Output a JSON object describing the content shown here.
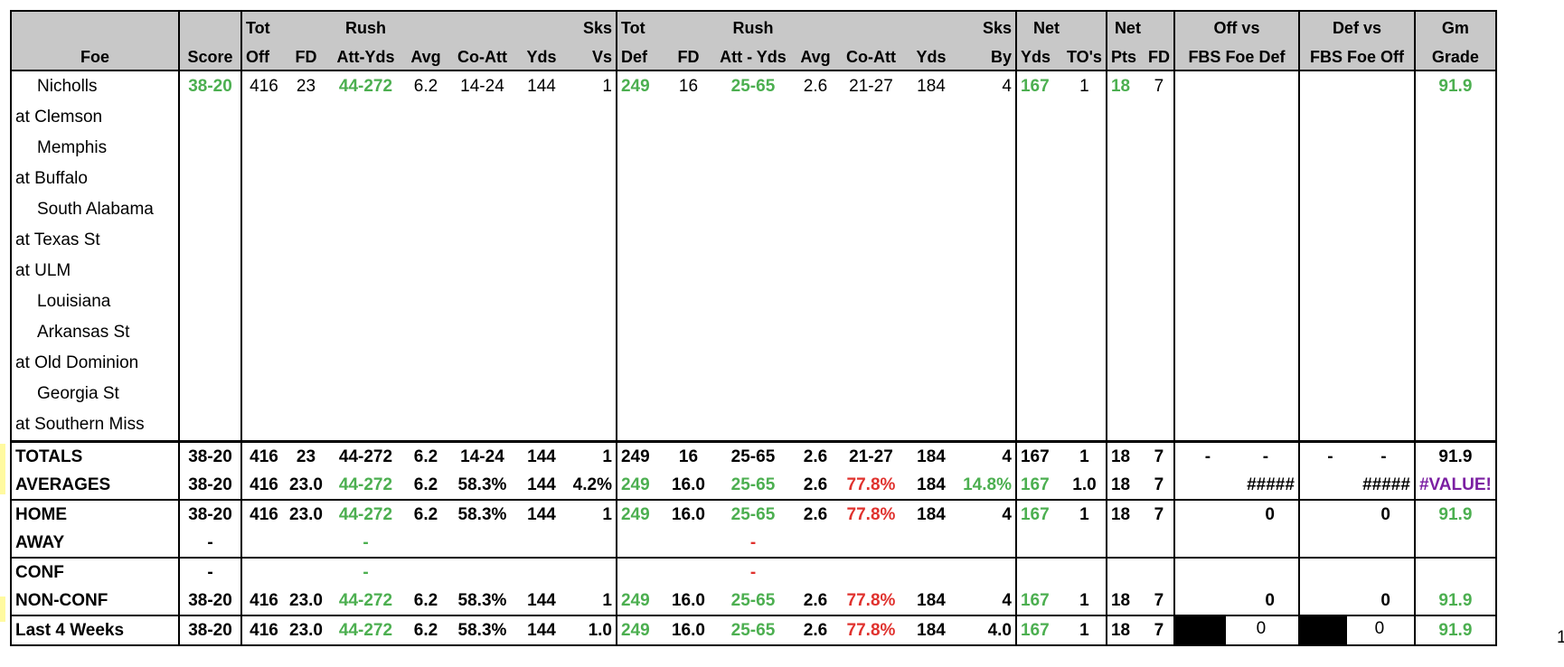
{
  "header_top": [
    "",
    "",
    "Tot",
    "",
    "Rush",
    "",
    "",
    "",
    "Sks",
    "Tot",
    "",
    "Rush",
    "",
    "",
    "",
    "Sks",
    "Net",
    "",
    "Net",
    "",
    "Off vs",
    "Def vs",
    "Gm"
  ],
  "header_bottom": [
    "Foe",
    "Score",
    "Off",
    "FD",
    "Att-Yds",
    "Avg",
    "Co-Att",
    "Yds",
    "Vs",
    "Def",
    "FD",
    "Att - Yds",
    "Avg",
    "Co-Att",
    "Yds",
    "By",
    "Yds",
    "TO's",
    "Pts",
    "FD",
    "FBS Foe Def",
    "FBS Foe Off",
    "Grade"
  ],
  "games": [
    {
      "foe": "Nicholls",
      "away": false,
      "score": "38-20",
      "tot_off": "416",
      "fd": "23",
      "rush": "44-272",
      "avg": "6.2",
      "co_att": "14-24",
      "yds": "144",
      "sks_vs": "1",
      "tot_def": "249",
      "dfd": "16",
      "drush": "25-65",
      "davg": "2.6",
      "dco_att": "21-27",
      "dyds": "184",
      "sks_by": "4",
      "net_yds": "167",
      "tos": "1",
      "pts": "18",
      "nfd": "7",
      "off_vs": "",
      "def_vs": "",
      "grade": "91.9"
    },
    {
      "foe": "at Clemson",
      "away": true
    },
    {
      "foe": "Memphis",
      "away": false
    },
    {
      "foe": "at Buffalo",
      "away": true
    },
    {
      "foe": "South Alabama",
      "away": false
    },
    {
      "foe": "at Texas St",
      "away": true
    },
    {
      "foe": "at ULM",
      "away": true
    },
    {
      "foe": "Louisiana",
      "away": false
    },
    {
      "foe": "Arkansas St",
      "away": false
    },
    {
      "foe": "at Old Dominion",
      "away": true
    },
    {
      "foe": "Georgia St",
      "away": false
    },
    {
      "foe": "at Southern Miss",
      "away": true
    }
  ],
  "totals": {
    "label": "TOTALS",
    "score": "38-20",
    "tot_off": "416",
    "fd": "23",
    "rush": "44-272",
    "avg": "6.2",
    "co_att": "14-24",
    "yds": "144",
    "sks_vs": "1",
    "tot_def": "249",
    "dfd": "16",
    "drush": "25-65",
    "davg": "2.6",
    "dco_att": "21-27",
    "dyds": "184",
    "sks_by": "4",
    "net_yds": "167",
    "tos": "1",
    "pts": "18",
    "nfd": "7",
    "off_vs_a": "-",
    "off_vs_b": "-",
    "def_vs_a": "-",
    "def_vs_b": "-",
    "grade": "91.9"
  },
  "averages": {
    "label": "AVERAGES",
    "score": "38-20",
    "tot_off": "416",
    "fd": "23.0",
    "rush": "44-272",
    "avg": "6.2",
    "co_att": "58.3%",
    "yds": "144",
    "sks_vs": "4.2%",
    "tot_def": "249",
    "dfd": "16.0",
    "drush": "25-65",
    "davg": "2.6",
    "dco_att": "77.8%",
    "dyds": "184",
    "sks_by": "14.8%",
    "net_yds": "167",
    "tos": "1.0",
    "pts": "18",
    "nfd": "7",
    "off_vs": "#####",
    "def_vs": "#####",
    "grade": "#VALUE!"
  },
  "home": {
    "label": "HOME",
    "score": "38-20",
    "tot_off": "416",
    "fd": "23.0",
    "rush": "44-272",
    "avg": "6.2",
    "co_att": "58.3%",
    "yds": "144",
    "sks_vs": "1",
    "tot_def": "249",
    "dfd": "16.0",
    "drush": "25-65",
    "davg": "2.6",
    "dco_att": "77.8%",
    "dyds": "184",
    "sks_by": "4",
    "net_yds": "167",
    "tos": "1",
    "pts": "18",
    "nfd": "7",
    "off_vs": "0",
    "def_vs": "0",
    "grade": "91.9"
  },
  "away": {
    "label": "AWAY",
    "score": "-",
    "rush": "-",
    "drush": "-"
  },
  "conf": {
    "label": "CONF",
    "score": "-",
    "rush": "-",
    "drush": "-"
  },
  "nonconf": {
    "label": "NON-CONF",
    "score": "38-20",
    "tot_off": "416",
    "fd": "23.0",
    "rush": "44-272",
    "avg": "6.2",
    "co_att": "58.3%",
    "yds": "144",
    "sks_vs": "1",
    "tot_def": "249",
    "dfd": "16.0",
    "drush": "25-65",
    "davg": "2.6",
    "dco_att": "77.8%",
    "dyds": "184",
    "sks_by": "4",
    "net_yds": "167",
    "tos": "1",
    "pts": "18",
    "nfd": "7",
    "off_vs": "0",
    "def_vs": "0",
    "grade": "91.9"
  },
  "last4": {
    "label": "Last 4 Weeks",
    "score": "38-20",
    "tot_off": "416",
    "fd": "23.0",
    "rush": "44-272",
    "avg": "6.2",
    "co_att": "58.3%",
    "yds": "144",
    "sks_vs": "1.0",
    "tot_def": "249",
    "dfd": "16.0",
    "drush": "25-65",
    "davg": "2.6",
    "dco_att": "77.8%",
    "dyds": "184",
    "sks_by": "4.0",
    "net_yds": "167",
    "tos": "1",
    "pts": "18",
    "nfd": "7",
    "off_vs": "0",
    "def_vs": "0",
    "grade": "91.9",
    "overflow": "1"
  },
  "colors": {
    "header_bg": "#c8c8c8",
    "green": "#4caf50",
    "red": "#e0322e",
    "purple": "#7b1fa2",
    "row_marker": "#fffaa0"
  }
}
